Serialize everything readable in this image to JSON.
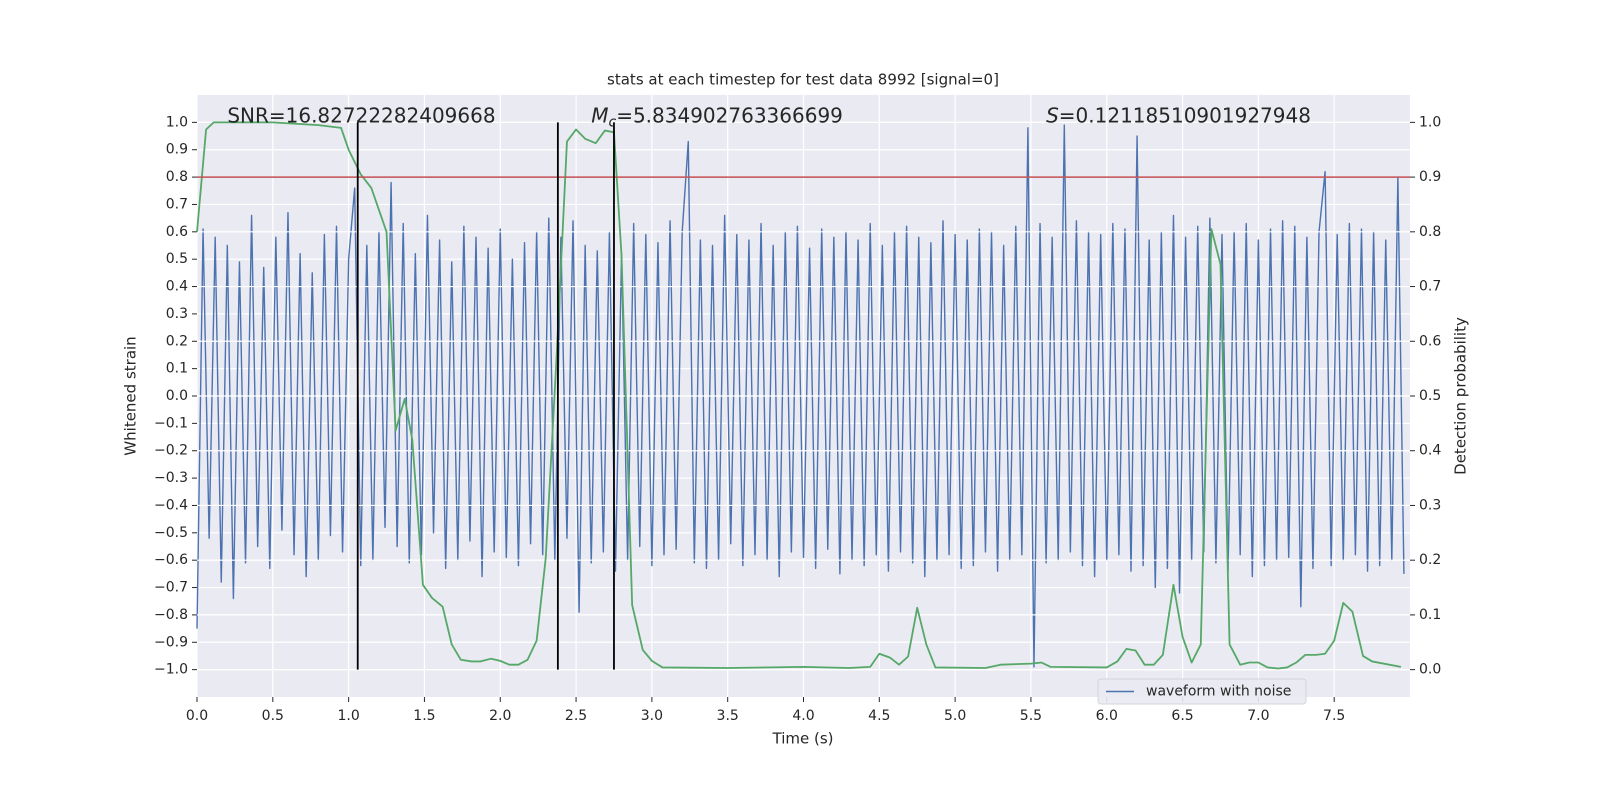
{
  "chart_data": {
    "type": "line",
    "title": "stats at each timestep for test data 8992 [signal=0]",
    "xlabel": "Time (s)",
    "ylabel": "Whitened strain",
    "y2label": "Detection probability",
    "xlim": [
      0,
      8
    ],
    "ylim": [
      -1.1,
      1.1
    ],
    "y2lim": [
      -0.05,
      1.05
    ],
    "grid": true,
    "legend": "lower right",
    "xticks": [
      {
        "value": 0,
        "label": "0.0"
      },
      {
        "value": 0.5,
        "label": "0.5"
      },
      {
        "value": 1,
        "label": "1.0"
      },
      {
        "value": 1.5,
        "label": "1.5"
      },
      {
        "value": 2,
        "label": "2.0"
      },
      {
        "value": 2.5,
        "label": "2.5"
      },
      {
        "value": 3,
        "label": "3.0"
      },
      {
        "value": 3.5,
        "label": "3.5"
      },
      {
        "value": 4,
        "label": "4.0"
      },
      {
        "value": 4.5,
        "label": "4.5"
      },
      {
        "value": 5,
        "label": "5.0"
      },
      {
        "value": 5.5,
        "label": "5.5"
      },
      {
        "value": 6,
        "label": "6.0"
      },
      {
        "value": 6.5,
        "label": "6.5"
      },
      {
        "value": 7,
        "label": "7.0"
      },
      {
        "value": 7.5,
        "label": "7.5"
      }
    ],
    "yticks": [
      {
        "value": -1,
        "label": "−1.0"
      },
      {
        "value": -0.9,
        "label": "−0.9"
      },
      {
        "value": -0.8,
        "label": "−0.8"
      },
      {
        "value": -0.7,
        "label": "−0.7"
      },
      {
        "value": -0.6,
        "label": "−0.6"
      },
      {
        "value": -0.5,
        "label": "−0.5"
      },
      {
        "value": -0.4,
        "label": "−0.4"
      },
      {
        "value": -0.3,
        "label": "−0.3"
      },
      {
        "value": -0.2,
        "label": "−0.2"
      },
      {
        "value": -0.1,
        "label": "−0.1"
      },
      {
        "value": 0,
        "label": "0.0"
      },
      {
        "value": 0.1,
        "label": "0.1"
      },
      {
        "value": 0.2,
        "label": "0.2"
      },
      {
        "value": 0.3,
        "label": "0.3"
      },
      {
        "value": 0.4,
        "label": "0.4"
      },
      {
        "value": 0.5,
        "label": "0.5"
      },
      {
        "value": 0.6,
        "label": "0.6"
      },
      {
        "value": 0.7,
        "label": "0.7"
      },
      {
        "value": 0.8,
        "label": "0.8"
      },
      {
        "value": 0.9,
        "label": "0.9"
      },
      {
        "value": 1,
        "label": "1.0"
      }
    ],
    "y2ticks": [
      {
        "value": 0,
        "label": "0.0"
      },
      {
        "value": 0.1,
        "label": "0.1"
      },
      {
        "value": 0.2,
        "label": "0.2"
      },
      {
        "value": 0.3,
        "label": "0.3"
      },
      {
        "value": 0.4,
        "label": "0.4"
      },
      {
        "value": 0.5,
        "label": "0.5"
      },
      {
        "value": 0.6,
        "label": "0.6"
      },
      {
        "value": 0.7,
        "label": "0.7"
      },
      {
        "value": 0.8,
        "label": "0.8"
      },
      {
        "value": 0.9,
        "label": "0.9"
      },
      {
        "value": 1,
        "label": "1.0"
      }
    ],
    "series": [
      {
        "name": "waveform with noise",
        "color": "#4c72b0",
        "x": [
          0,
          0.04,
          0.08,
          0.12,
          0.16,
          0.2,
          0.24,
          0.28,
          0.32,
          0.36,
          0.4,
          0.44,
          0.48,
          0.52,
          0.56,
          0.6,
          0.64,
          0.68,
          0.72,
          0.76,
          0.8,
          0.84,
          0.88,
          0.92,
          0.96,
          1,
          1.04,
          1.08,
          1.12,
          1.16,
          1.2,
          1.24,
          1.28,
          1.32,
          1.36,
          1.4,
          1.44,
          1.48,
          1.52,
          1.56,
          1.6,
          1.64,
          1.68,
          1.72,
          1.76,
          1.8,
          1.84,
          1.88,
          1.92,
          1.96,
          2,
          2.04,
          2.08,
          2.12,
          2.16,
          2.2,
          2.24,
          2.28,
          2.32,
          2.36,
          2.4,
          2.44,
          2.48,
          2.52,
          2.56,
          2.6,
          2.64,
          2.68,
          2.72,
          2.76,
          2.8,
          2.84,
          2.88,
          2.92,
          2.96,
          3,
          3.04,
          3.08,
          3.12,
          3.16,
          3.2,
          3.24,
          3.28,
          3.32,
          3.36,
          3.4,
          3.44,
          3.48,
          3.52,
          3.56,
          3.6,
          3.64,
          3.68,
          3.72,
          3.76,
          3.8,
          3.84,
          3.88,
          3.92,
          3.96,
          4,
          4.04,
          4.08,
          4.12,
          4.16,
          4.2,
          4.24,
          4.28,
          4.32,
          4.36,
          4.4,
          4.44,
          4.48,
          4.52,
          4.56,
          4.6,
          4.64,
          4.68,
          4.72,
          4.76,
          4.8,
          4.84,
          4.88,
          4.92,
          4.96,
          5,
          5.04,
          5.08,
          5.12,
          5.16,
          5.2,
          5.24,
          5.28,
          5.32,
          5.36,
          5.4,
          5.44,
          5.48,
          5.52,
          5.56,
          5.6,
          5.64,
          5.68,
          5.72,
          5.76,
          5.8,
          5.84,
          5.88,
          5.92,
          5.96,
          6,
          6.04,
          6.08,
          6.12,
          6.16,
          6.2,
          6.24,
          6.28,
          6.32,
          6.36,
          6.4,
          6.44,
          6.48,
          6.52,
          6.56,
          6.6,
          6.64,
          6.68,
          6.72,
          6.76,
          6.8,
          6.84,
          6.88,
          6.92,
          6.96,
          7,
          7.04,
          7.08,
          7.12,
          7.16,
          7.2,
          7.24,
          7.28,
          7.32,
          7.36,
          7.4,
          7.44,
          7.48,
          7.52,
          7.56,
          7.6,
          7.64,
          7.68,
          7.72,
          7.76,
          7.8,
          7.84,
          7.88,
          7.92,
          7.96
        ],
        "values": [
          -0.85,
          0.61,
          -0.52,
          0.58,
          -0.68,
          0.55,
          -0.74,
          0.49,
          -0.61,
          0.66,
          -0.55,
          0.47,
          -0.63,
          0.58,
          -0.49,
          0.67,
          -0.58,
          0.52,
          -0.66,
          0.45,
          -0.6,
          0.59,
          -0.51,
          0.62,
          -0.57,
          0.5,
          0.76,
          -0.62,
          0.55,
          -0.6,
          0.6,
          -0.48,
          0.78,
          -0.55,
          0.63,
          -0.61,
          0.52,
          -0.58,
          0.66,
          -0.5,
          0.57,
          -0.63,
          0.49,
          -0.6,
          0.62,
          -0.53,
          0.58,
          -0.66,
          0.54,
          -0.57,
          0.61,
          -0.59,
          0.5,
          -0.62,
          0.56,
          -0.54,
          0.6,
          -0.58,
          0.65,
          -0.6,
          0.58,
          -0.52,
          0.64,
          -0.79,
          0.55,
          -0.61,
          0.53,
          -0.57,
          0.6,
          -0.64,
          0.52,
          -0.6,
          0.63,
          -0.55,
          0.59,
          -0.62,
          0.56,
          -0.58,
          0.64,
          -0.56,
          0.6,
          0.93,
          -0.61,
          0.57,
          -0.63,
          0.55,
          -0.6,
          0.66,
          -0.54,
          0.59,
          -0.62,
          0.57,
          -0.58,
          0.63,
          -0.6,
          0.55,
          -0.66,
          0.6,
          -0.57,
          0.62,
          -0.59,
          0.54,
          -0.63,
          0.61,
          -0.56,
          0.58,
          -0.65,
          0.6,
          -0.6,
          0.57,
          -0.62,
          0.63,
          -0.58,
          0.55,
          -0.64,
          0.6,
          -0.57,
          0.62,
          -0.61,
          0.58,
          -0.66,
          0.56,
          -0.6,
          0.64,
          -0.58,
          0.59,
          -0.63,
          0.57,
          -0.62,
          0.61,
          -0.57,
          0.6,
          -0.64,
          0.55,
          -0.6,
          0.62,
          -0.58,
          0.98,
          -0.99,
          0.63,
          -0.61,
          0.58,
          -0.6,
          0.99,
          -0.57,
          0.64,
          -0.62,
          0.6,
          -0.66,
          0.59,
          -0.6,
          0.63,
          -0.58,
          0.61,
          -0.64,
          0.95,
          -0.62,
          0.57,
          -0.7,
          0.6,
          -0.63,
          0.66,
          -0.72,
          0.58,
          -0.6,
          0.62,
          -0.57,
          0.65,
          -0.61,
          0.59,
          -0.64,
          0.6,
          -0.58,
          0.63,
          -0.66,
          0.57,
          -0.62,
          0.61,
          -0.6,
          0.64,
          -0.59,
          0.62,
          -0.77,
          0.58,
          -0.63,
          0.6,
          0.82,
          -0.62,
          0.59,
          -0.6,
          0.63,
          -0.58,
          0.61,
          -0.64,
          0.6,
          -0.62,
          0.57,
          -0.6,
          0.8,
          -0.65
        ]
      },
      {
        "color": "#55a868",
        "axis": "y2",
        "x": [
          0,
          0.06,
          0.11,
          0.5,
          0.8,
          0.95,
          1,
          1.08,
          1.15,
          1.25,
          1.31,
          1.37,
          1.42,
          1.49,
          1.55,
          1.62,
          1.68,
          1.74,
          1.81,
          1.87,
          1.94,
          2,
          2.06,
          2.12,
          2.18,
          2.24,
          2.3,
          2.37,
          2.44,
          2.5,
          2.56,
          2.63,
          2.69,
          2.75,
          2.8,
          2.87,
          2.94,
          3,
          3.07,
          3.5,
          4,
          4.3,
          4.44,
          4.5,
          4.57,
          4.63,
          4.69,
          4.75,
          4.81,
          4.87,
          5.2,
          5.3,
          5.5,
          5.57,
          5.63,
          6,
          6.07,
          6.13,
          6.19,
          6.25,
          6.31,
          6.37,
          6.44,
          6.5,
          6.56,
          6.62,
          6.69,
          6.75,
          6.81,
          6.88,
          6.94,
          7,
          7.06,
          7.13,
          7.19,
          7.25,
          7.31,
          7.38,
          7.44,
          7.5,
          7.56,
          7.62,
          7.69,
          7.75,
          7.94
        ],
        "values": [
          0.8,
          0.987,
          1,
          1,
          0.995,
          0.99,
          0.95,
          0.905,
          0.88,
          0.8,
          0.437,
          0.495,
          0.42,
          0.155,
          0.131,
          0.115,
          0.046,
          0.018,
          0.015,
          0.015,
          0.02,
          0.016,
          0.009,
          0.009,
          0.018,
          0.053,
          0.204,
          0.563,
          0.965,
          0.987,
          0.97,
          0.962,
          0.985,
          0.982,
          0.756,
          0.118,
          0.036,
          0.016,
          0.004,
          0.003,
          0.005,
          0.003,
          0.005,
          0.029,
          0.022,
          0.009,
          0.024,
          0.113,
          0.046,
          0.004,
          0.003,
          0.009,
          0.011,
          0.013,
          0.005,
          0.004,
          0.015,
          0.038,
          0.035,
          0.009,
          0.009,
          0.027,
          0.155,
          0.06,
          0.013,
          0.046,
          0.805,
          0.741,
          0.046,
          0.009,
          0.013,
          0.013,
          0.004,
          0.002,
          0.004,
          0.013,
          0.027,
          0.027,
          0.029,
          0.053,
          0.122,
          0.106,
          0.025,
          0.015,
          0.005
        ]
      }
    ],
    "hlines": [
      {
        "value": 0.9,
        "axis": "y2",
        "color": "#c44e52"
      }
    ],
    "vlines": {
      "x": [
        1.06,
        2.38,
        2.75
      ],
      "ymin": -1,
      "ymax": 1,
      "color": "#000000"
    },
    "annotations": [
      {
        "text": "SNR=16.82722282409668"
      },
      {
        "symbol": "M",
        "subscript": "c",
        "text": "=5.834902763366699"
      },
      {
        "symbol": "S",
        "text": "=0.12118510901927948"
      }
    ]
  }
}
